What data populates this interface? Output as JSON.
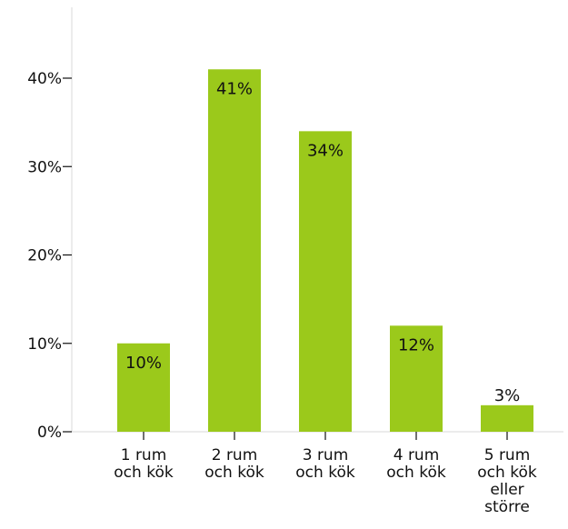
{
  "chart_data": {
    "type": "bar",
    "title": "",
    "xlabel": "",
    "ylabel": "",
    "categories": [
      [
        "1 rum",
        "och kök"
      ],
      [
        "2 rum",
        "och kök"
      ],
      [
        "3 rum",
        "och kök"
      ],
      [
        "4 rum",
        "och kök"
      ],
      [
        "5 rum",
        "och kök",
        "eller",
        "större"
      ]
    ],
    "values": [
      10,
      41,
      34,
      12,
      3
    ],
    "data_labels": [
      "10%",
      "41%",
      "34%",
      "12%",
      "3%"
    ],
    "ylim": [
      0,
      45
    ],
    "yticks": [
      0,
      10,
      20,
      30,
      40
    ],
    "ytick_labels": [
      "0%",
      "10%",
      "20%",
      "30%",
      "40%"
    ],
    "grid": false,
    "legend": "none",
    "bar_color": "#9bc91b"
  }
}
